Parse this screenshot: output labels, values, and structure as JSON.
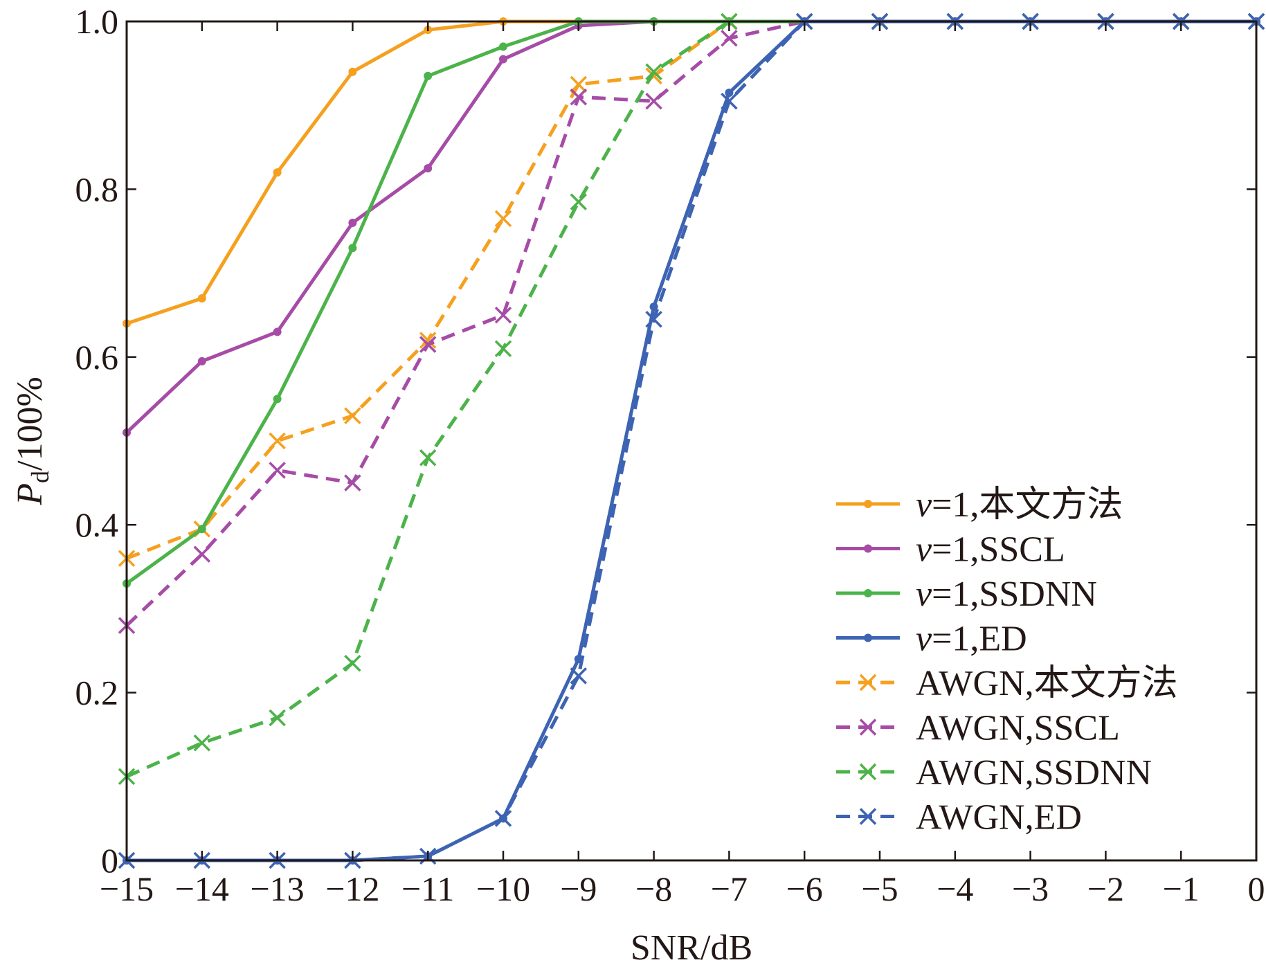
{
  "chart_data": {
    "type": "line",
    "xlabel": "SNR/dB",
    "ylabel": "P_d/100%",
    "ylabel_main": "P",
    "ylabel_sub": "d",
    "ylabel_rest": "/100%",
    "xlim": [
      -15,
      0
    ],
    "ylim": [
      0,
      1
    ],
    "x_ticks": [
      -15,
      -14,
      -13,
      -12,
      -11,
      -10,
      -9,
      -8,
      -7,
      -6,
      -5,
      -4,
      -3,
      -2,
      -1,
      0
    ],
    "x_tick_labels": [
      "−15",
      "−14",
      "−13",
      "−12",
      "−11",
      "−10",
      "−9",
      "−8",
      "−7",
      "−6",
      "−5",
      "−4",
      "−3",
      "−2",
      "−1",
      "0"
    ],
    "y_ticks": [
      0,
      0.2,
      0.4,
      0.6,
      0.8,
      1.0
    ],
    "y_tick_labels": [
      "0",
      "0.2",
      "0.4",
      "0.6",
      "0.8",
      "1.0"
    ],
    "grid": false,
    "legend_position": "bottom-right",
    "x": [
      -15,
      -14,
      -13,
      -12,
      -11,
      -10,
      -9,
      -8,
      -7,
      -6,
      -5,
      -4,
      -3,
      -2,
      -1,
      0
    ],
    "series": [
      {
        "name": "v=1,本文方法",
        "name_italic": "v",
        "name_rest": "=1,本文方法",
        "color": "#f5a01e",
        "dash": false,
        "marker": "dot",
        "values": [
          0.64,
          0.67,
          0.82,
          0.94,
          0.99,
          1.0,
          1.0,
          1.0,
          1.0,
          1.0,
          1.0,
          1.0,
          1.0,
          1.0,
          1.0,
          1.0
        ]
      },
      {
        "name": "v=1,SSCL",
        "name_italic": "v",
        "name_rest": "=1,SSCL",
        "color": "#a64ca6",
        "dash": false,
        "marker": "dot",
        "values": [
          0.51,
          0.595,
          0.63,
          0.76,
          0.825,
          0.955,
          0.995,
          1.0,
          1.0,
          1.0,
          1.0,
          1.0,
          1.0,
          1.0,
          1.0,
          1.0
        ]
      },
      {
        "name": "v=1,SSDNN",
        "name_italic": "v",
        "name_rest": "=1,SSDNN",
        "color": "#4cb34a",
        "dash": false,
        "marker": "dot",
        "values": [
          0.33,
          0.395,
          0.55,
          0.73,
          0.935,
          0.97,
          1.0,
          1.0,
          1.0,
          1.0,
          1.0,
          1.0,
          1.0,
          1.0,
          1.0,
          1.0
        ]
      },
      {
        "name": "v=1,ED",
        "name_italic": "v",
        "name_rest": "=1,ED",
        "color": "#3d63b3",
        "dash": false,
        "marker": "dot",
        "values": [
          0.0,
          0.0,
          0.0,
          0.0,
          0.005,
          0.05,
          0.24,
          0.66,
          0.915,
          1.0,
          1.0,
          1.0,
          1.0,
          1.0,
          1.0,
          1.0
        ]
      },
      {
        "name": "AWGN,本文方法",
        "name_italic": "",
        "name_rest": "AWGN,本文方法",
        "color": "#f5a01e",
        "dash": true,
        "marker": "x",
        "values": [
          0.36,
          0.395,
          0.5,
          0.53,
          0.62,
          0.765,
          0.925,
          0.935,
          1.0,
          1.0,
          1.0,
          1.0,
          1.0,
          1.0,
          1.0,
          1.0
        ]
      },
      {
        "name": "AWGN,SSCL",
        "name_italic": "",
        "name_rest": "AWGN,SSCL",
        "color": "#a64ca6",
        "dash": true,
        "marker": "x",
        "values": [
          0.28,
          0.365,
          0.465,
          0.45,
          0.615,
          0.65,
          0.91,
          0.905,
          0.98,
          1.0,
          1.0,
          1.0,
          1.0,
          1.0,
          1.0,
          1.0
        ]
      },
      {
        "name": "AWGN,SSDNN",
        "name_italic": "",
        "name_rest": "AWGN,SSDNN",
        "color": "#4cb34a",
        "dash": true,
        "marker": "x",
        "values": [
          0.1,
          0.14,
          0.17,
          0.235,
          0.48,
          0.61,
          0.785,
          0.94,
          1.0,
          1.0,
          1.0,
          1.0,
          1.0,
          1.0,
          1.0,
          1.0
        ]
      },
      {
        "name": "AWGN,ED",
        "name_italic": "",
        "name_rest": "AWGN,ED",
        "color": "#3d63b3",
        "dash": true,
        "marker": "x",
        "values": [
          0.0,
          0.0,
          0.0,
          0.0,
          0.005,
          0.05,
          0.22,
          0.645,
          0.905,
          1.0,
          1.0,
          1.0,
          1.0,
          1.0,
          1.0,
          1.0
        ]
      }
    ]
  }
}
